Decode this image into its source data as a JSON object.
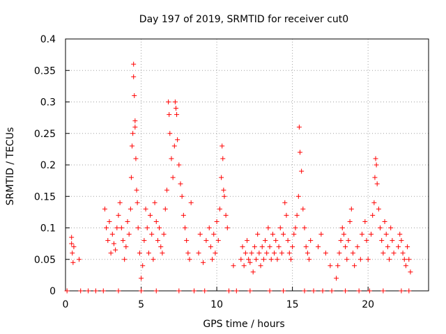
{
  "chart_data": {
    "type": "scatter",
    "title": "Day 197 of 2019, SRMTID for receiver cut0",
    "xlabel": "GPS time / hours",
    "ylabel": "SRMTID / TECUs",
    "xlim": [
      0,
      24
    ],
    "ylim": [
      0,
      0.4
    ],
    "xticks": [
      0,
      5,
      10,
      15,
      20
    ],
    "yticks": [
      0,
      0.05,
      0.1,
      0.15,
      0.2,
      0.25,
      0.3,
      0.35,
      0.4
    ],
    "grid": true,
    "marker": "+",
    "color": "#ff0000",
    "series": [
      {
        "values": [
          [
            0.4,
            0.085
          ],
          [
            0.4,
            0.075
          ],
          [
            0.45,
            0.06
          ],
          [
            0.5,
            0.045
          ],
          [
            0.55,
            0.07
          ],
          [
            0.9,
            0.05
          ],
          [
            2.6,
            0.13
          ],
          [
            2.7,
            0.1
          ],
          [
            2.8,
            0.08
          ],
          [
            2.9,
            0.11
          ],
          [
            3.0,
            0.06
          ],
          [
            3.1,
            0.09
          ],
          [
            3.2,
            0.075
          ],
          [
            3.3,
            0.065
          ],
          [
            3.4,
            0.1
          ],
          [
            3.5,
            0.12
          ],
          [
            3.6,
            0.14
          ],
          [
            3.7,
            0.1
          ],
          [
            3.8,
            0.08
          ],
          [
            3.9,
            0.05
          ],
          [
            4.0,
            0.07
          ],
          [
            4.1,
            0.11
          ],
          [
            4.2,
            0.09
          ],
          [
            4.3,
            0.13
          ],
          [
            4.35,
            0.18
          ],
          [
            4.4,
            0.23
          ],
          [
            4.45,
            0.25
          ],
          [
            4.5,
            0.36
          ],
          [
            4.5,
            0.34
          ],
          [
            4.55,
            0.31
          ],
          [
            4.6,
            0.27
          ],
          [
            4.6,
            0.26
          ],
          [
            4.65,
            0.21
          ],
          [
            4.7,
            0.16
          ],
          [
            4.75,
            0.14
          ],
          [
            4.8,
            0.1
          ],
          [
            4.9,
            0.06
          ],
          [
            5.0,
            0.02
          ],
          [
            5.1,
            0.04
          ],
          [
            5.2,
            0.08
          ],
          [
            5.3,
            0.13
          ],
          [
            5.4,
            0.1
          ],
          [
            5.5,
            0.06
          ],
          [
            5.6,
            0.12
          ],
          [
            5.7,
            0.09
          ],
          [
            5.8,
            0.05
          ],
          [
            5.9,
            0.14
          ],
          [
            6.0,
            0.11
          ],
          [
            6.1,
            0.08
          ],
          [
            6.2,
            0.1
          ],
          [
            6.3,
            0.07
          ],
          [
            6.4,
            0.06
          ],
          [
            6.5,
            0.09
          ],
          [
            6.6,
            0.13
          ],
          [
            6.7,
            0.16
          ],
          [
            6.8,
            0.3
          ],
          [
            6.85,
            0.28
          ],
          [
            6.9,
            0.25
          ],
          [
            7.0,
            0.21
          ],
          [
            7.1,
            0.18
          ],
          [
            7.2,
            0.23
          ],
          [
            7.25,
            0.3
          ],
          [
            7.3,
            0.29
          ],
          [
            7.35,
            0.28
          ],
          [
            7.4,
            0.24
          ],
          [
            7.5,
            0.2
          ],
          [
            7.6,
            0.17
          ],
          [
            7.7,
            0.15
          ],
          [
            7.8,
            0.12
          ],
          [
            7.9,
            0.1
          ],
          [
            8.0,
            0.08
          ],
          [
            8.1,
            0.06
          ],
          [
            8.2,
            0.05
          ],
          [
            8.3,
            0.14
          ],
          [
            8.8,
            0.06
          ],
          [
            8.9,
            0.09
          ],
          [
            9.1,
            0.045
          ],
          [
            9.3,
            0.08
          ],
          [
            9.5,
            0.1
          ],
          [
            9.6,
            0.07
          ],
          [
            9.7,
            0.05
          ],
          [
            9.8,
            0.09
          ],
          [
            9.9,
            0.06
          ],
          [
            10.0,
            0.11
          ],
          [
            10.1,
            0.08
          ],
          [
            10.2,
            0.13
          ],
          [
            10.3,
            0.18
          ],
          [
            10.35,
            0.23
          ],
          [
            10.4,
            0.21
          ],
          [
            10.45,
            0.16
          ],
          [
            10.5,
            0.15
          ],
          [
            10.6,
            0.12
          ],
          [
            10.7,
            0.1
          ],
          [
            11.1,
            0.04
          ],
          [
            11.6,
            0.05
          ],
          [
            11.7,
            0.07
          ],
          [
            11.8,
            0.04
          ],
          [
            11.9,
            0.06
          ],
          [
            12.0,
            0.08
          ],
          [
            12.1,
            0.05
          ],
          [
            12.2,
            0.045
          ],
          [
            12.3,
            0.06
          ],
          [
            12.4,
            0.03
          ],
          [
            12.5,
            0.07
          ],
          [
            12.6,
            0.05
          ],
          [
            12.7,
            0.09
          ],
          [
            12.8,
            0.06
          ],
          [
            12.9,
            0.04
          ],
          [
            13.0,
            0.07
          ],
          [
            13.1,
            0.05
          ],
          [
            13.2,
            0.08
          ],
          [
            13.3,
            0.06
          ],
          [
            13.4,
            0.1
          ],
          [
            13.5,
            0.07
          ],
          [
            13.6,
            0.05
          ],
          [
            13.7,
            0.09
          ],
          [
            13.8,
            0.06
          ],
          [
            13.9,
            0.08
          ],
          [
            14.0,
            0.05
          ],
          [
            14.1,
            0.07
          ],
          [
            14.2,
            0.1
          ],
          [
            14.3,
            0.06
          ],
          [
            14.4,
            0.09
          ],
          [
            14.5,
            0.14
          ],
          [
            14.6,
            0.12
          ],
          [
            14.7,
            0.08
          ],
          [
            14.8,
            0.06
          ],
          [
            14.9,
            0.05
          ],
          [
            15.0,
            0.07
          ],
          [
            15.1,
            0.09
          ],
          [
            15.2,
            0.1
          ],
          [
            15.3,
            0.12
          ],
          [
            15.4,
            0.15
          ],
          [
            15.45,
            0.26
          ],
          [
            15.5,
            0.22
          ],
          [
            15.6,
            0.19
          ],
          [
            15.7,
            0.13
          ],
          [
            15.8,
            0.1
          ],
          [
            15.9,
            0.07
          ],
          [
            16.0,
            0.06
          ],
          [
            16.1,
            0.05
          ],
          [
            16.2,
            0.08
          ],
          [
            16.7,
            0.07
          ],
          [
            16.9,
            0.09
          ],
          [
            17.2,
            0.06
          ],
          [
            17.5,
            0.04
          ],
          [
            17.9,
            0.02
          ],
          [
            18.0,
            0.04
          ],
          [
            18.1,
            0.06
          ],
          [
            18.2,
            0.08
          ],
          [
            18.3,
            0.1
          ],
          [
            18.4,
            0.09
          ],
          [
            18.5,
            0.07
          ],
          [
            18.6,
            0.05
          ],
          [
            18.7,
            0.08
          ],
          [
            18.8,
            0.11
          ],
          [
            18.9,
            0.13
          ],
          [
            19.0,
            0.06
          ],
          [
            19.1,
            0.04
          ],
          [
            19.3,
            0.07
          ],
          [
            19.5,
            0.05
          ],
          [
            19.6,
            0.09
          ],
          [
            19.8,
            0.11
          ],
          [
            19.9,
            0.08
          ],
          [
            20.0,
            0.05
          ],
          [
            20.2,
            0.09
          ],
          [
            20.3,
            0.12
          ],
          [
            20.4,
            0.14
          ],
          [
            20.45,
            0.18
          ],
          [
            20.5,
            0.21
          ],
          [
            20.55,
            0.2
          ],
          [
            20.6,
            0.17
          ],
          [
            20.7,
            0.13
          ],
          [
            20.8,
            0.1
          ],
          [
            20.9,
            0.08
          ],
          [
            21.0,
            0.06
          ],
          [
            21.1,
            0.11
          ],
          [
            21.2,
            0.09
          ],
          [
            21.3,
            0.07
          ],
          [
            21.4,
            0.05
          ],
          [
            21.5,
            0.1
          ],
          [
            21.6,
            0.08
          ],
          [
            21.7,
            0.06
          ],
          [
            22.0,
            0.07
          ],
          [
            22.1,
            0.09
          ],
          [
            22.2,
            0.08
          ],
          [
            22.3,
            0.06
          ],
          [
            22.4,
            0.05
          ],
          [
            22.5,
            0.04
          ],
          [
            22.6,
            0.07
          ],
          [
            22.7,
            0.05
          ],
          [
            22.8,
            0.03
          ],
          [
            0.1,
            0
          ],
          [
            1.0,
            0
          ],
          [
            1.5,
            0
          ],
          [
            2.0,
            0
          ],
          [
            2.5,
            0
          ],
          [
            3.5,
            0
          ],
          [
            5.0,
            0
          ],
          [
            6.0,
            0
          ],
          [
            7.5,
            0
          ],
          [
            8.5,
            0
          ],
          [
            9.2,
            0
          ],
          [
            10.8,
            0
          ],
          [
            11.3,
            0
          ],
          [
            12.2,
            0
          ],
          [
            13.5,
            0
          ],
          [
            14.4,
            0
          ],
          [
            15.8,
            0
          ],
          [
            16.4,
            0
          ],
          [
            17.0,
            0
          ],
          [
            17.6,
            0
          ],
          [
            18.5,
            0
          ],
          [
            19.4,
            0
          ],
          [
            20.1,
            0
          ],
          [
            21.0,
            0
          ],
          [
            22.2,
            0
          ],
          [
            22.7,
            0
          ]
        ]
      }
    ]
  }
}
